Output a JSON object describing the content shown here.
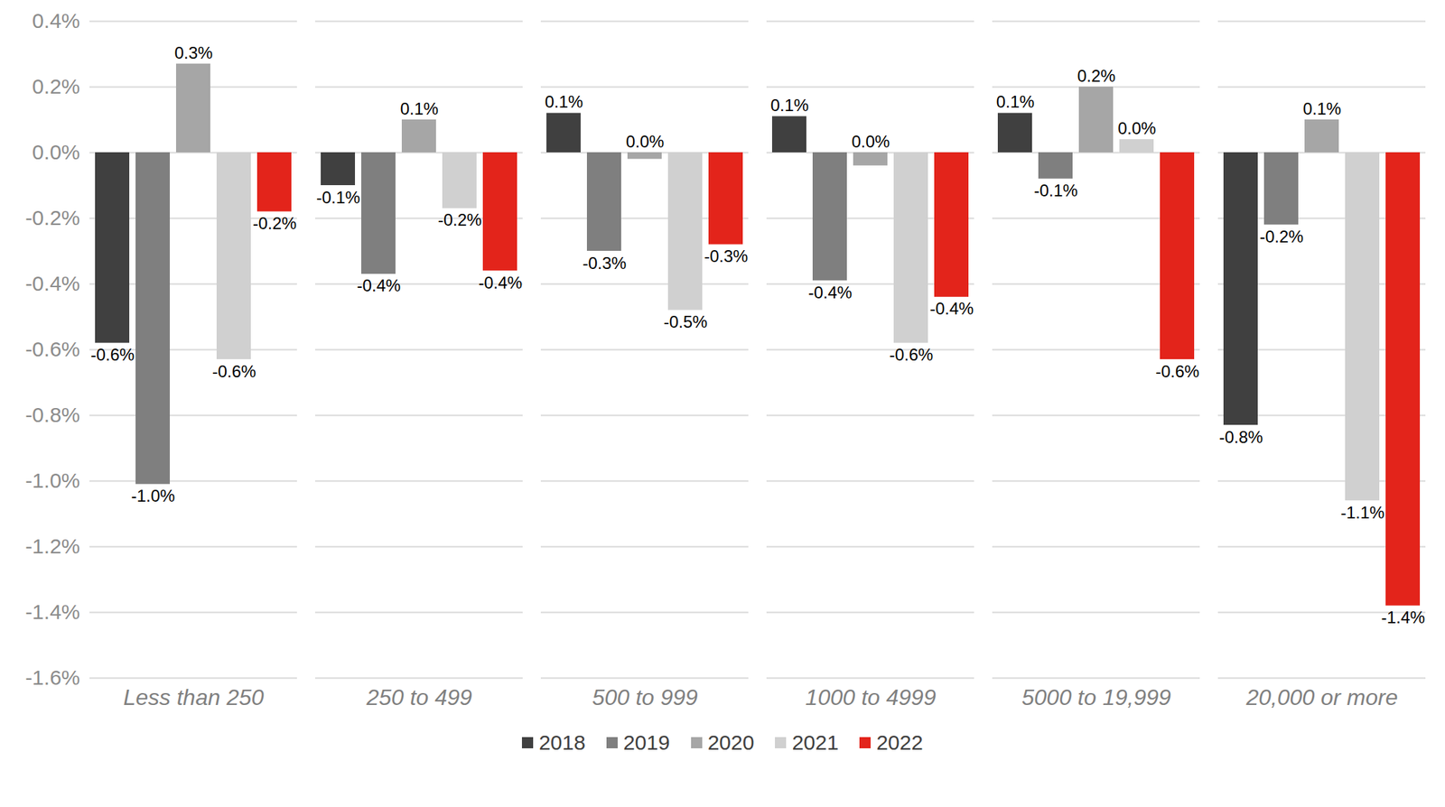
{
  "chart_data": {
    "type": "bar",
    "categories": [
      "Less than 250",
      "250 to 499",
      "500 to 999",
      "1000 to 4999",
      "5000 to 19,999",
      "20,000 or more"
    ],
    "series": [
      {
        "name": "2018",
        "color": "#404040",
        "values": [
          -0.58,
          -0.1,
          0.12,
          0.11,
          0.12,
          -0.83
        ],
        "value_labels": [
          "-0.6%",
          "-0.1%",
          "0.1%",
          "0.1%",
          "0.1%",
          "-0.8%"
        ]
      },
      {
        "name": "2019",
        "color": "#7f7f7f",
        "values": [
          -1.01,
          -0.37,
          -0.3,
          -0.39,
          -0.08,
          -0.22
        ],
        "value_labels": [
          "-1.0%",
          "-0.4%",
          "-0.3%",
          "-0.4%",
          "-0.1%",
          "-0.2%"
        ]
      },
      {
        "name": "2020",
        "color": "#a6a6a6",
        "values": [
          0.27,
          0.1,
          -0.02,
          -0.04,
          0.2,
          0.1
        ],
        "value_labels": [
          "0.3%",
          "0.1%",
          "0.0%",
          "0.0%",
          "0.2%",
          "0.1%"
        ]
      },
      {
        "name": "2021",
        "color": "#d0d0d0",
        "values": [
          -0.63,
          -0.17,
          -0.48,
          -0.58,
          0.04,
          -1.06
        ],
        "value_labels": [
          "-0.6%",
          "-0.2%",
          "-0.5%",
          "-0.6%",
          "0.0%",
          "-1.1%"
        ]
      },
      {
        "name": "2022",
        "color": "#e3241b",
        "values": [
          -0.18,
          -0.36,
          -0.28,
          -0.44,
          -0.63,
          -1.38
        ],
        "value_labels": [
          "-0.2%",
          "-0.4%",
          "-0.3%",
          "-0.4%",
          "-0.6%",
          "-1.4%"
        ]
      }
    ],
    "ylim": [
      -1.6,
      0.4
    ],
    "yticks": [
      {
        "value": -1.6,
        "label": "-1.6%"
      },
      {
        "value": -1.4,
        "label": "-1.4%"
      },
      {
        "value": -1.2,
        "label": "-1.2%"
      },
      {
        "value": -1.0,
        "label": "-1.0%"
      },
      {
        "value": -0.8,
        "label": "-0.8%"
      },
      {
        "value": -0.6,
        "label": "-0.6%"
      },
      {
        "value": -0.4,
        "label": "-0.4%"
      },
      {
        "value": -0.2,
        "label": "-0.2%"
      },
      {
        "value": 0,
        "label": "0.0%"
      },
      {
        "value": 0.2,
        "label": "0.2%"
      },
      {
        "value": 0.4,
        "label": "0.4%"
      }
    ],
    "grid": true,
    "data_labels": true,
    "legend": "bottom"
  }
}
